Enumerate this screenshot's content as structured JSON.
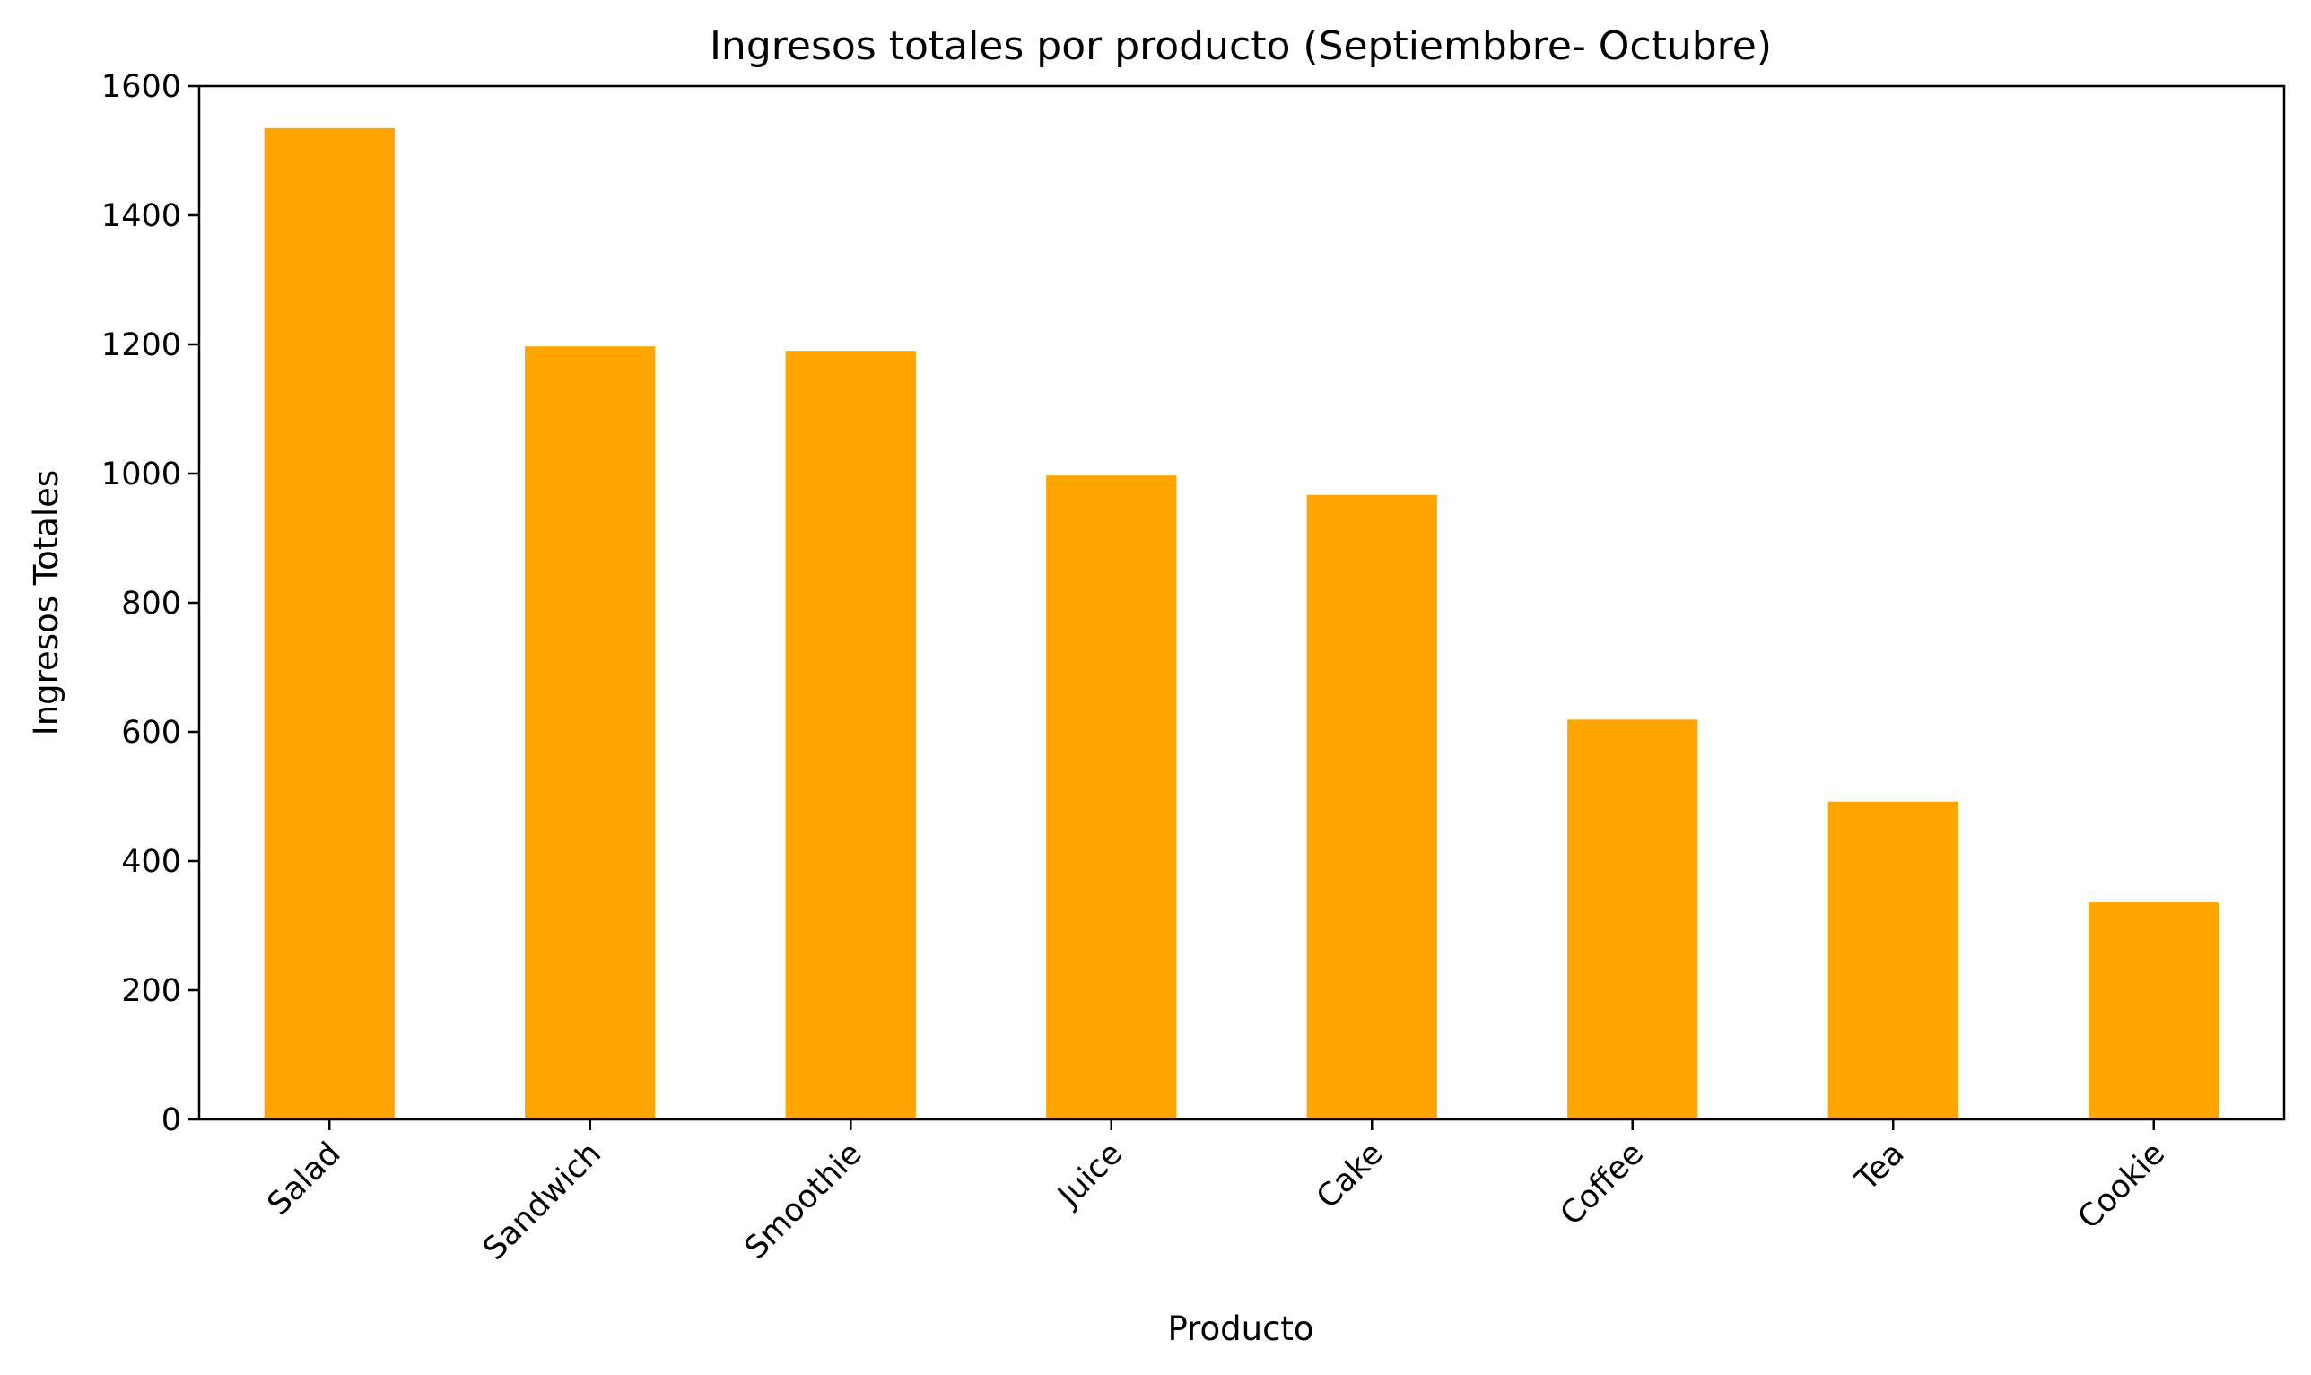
{
  "chart_data": {
    "type": "bar",
    "title": "Ingresos totales por producto (Septiembbre- Octubre)",
    "xlabel": "Producto",
    "ylabel": "Ingresos Totales",
    "categories": [
      "Salad",
      "Sandwich",
      "Smoothie",
      "Juice",
      "Cake",
      "Coffee",
      "Tea",
      "Cookie"
    ],
    "values": [
      1535,
      1197,
      1190,
      997,
      967,
      619,
      492,
      336
    ],
    "ylim": [
      0,
      1600
    ],
    "yticks": [
      0,
      200,
      400,
      600,
      800,
      1000,
      1200,
      1400,
      1600
    ],
    "grid": false,
    "legend": "none",
    "bar_color": "#FFA500",
    "xtick_rotation_deg": 45
  }
}
